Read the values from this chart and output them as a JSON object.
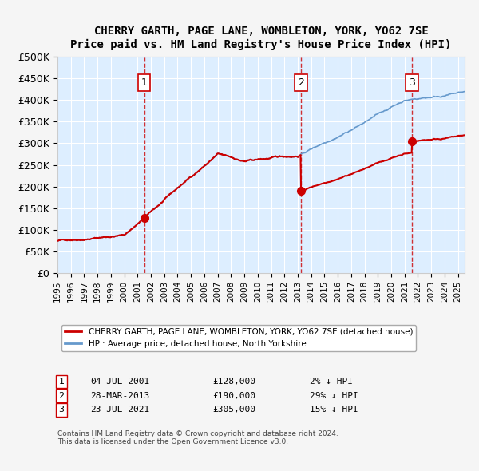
{
  "title": "CHERRY GARTH, PAGE LANE, WOMBLETON, YORK, YO62 7SE",
  "subtitle": "Price paid vs. HM Land Registry's House Price Index (HPI)",
  "sale_dates_num": [
    2001.507,
    2013.238,
    2021.557
  ],
  "sale_prices": [
    128000,
    190000,
    305000
  ],
  "sale_labels": [
    "1",
    "2",
    "3"
  ],
  "sale_date_strs": [
    "04-JUL-2001",
    "28-MAR-2013",
    "23-JUL-2021"
  ],
  "sale_price_strs": [
    "£128,000",
    "£190,000",
    "£305,000"
  ],
  "sale_hpi_strs": [
    "2% ↓ HPI",
    "29% ↓ HPI",
    "15% ↓ HPI"
  ],
  "hpi_line_color": "#6699cc",
  "price_line_color": "#cc0000",
  "sale_marker_color": "#cc0000",
  "dashed_line_color": "#cc0000",
  "background_color": "#ddeeff",
  "plot_background_color": "#ddeeff",
  "ylim": [
    0,
    500000
  ],
  "xlim_start": 1995.0,
  "xlim_end": 2025.5,
  "legend_label_property": "CHERRY GARTH, PAGE LANE, WOMBLETON, YORK, YO62 7SE (detached house)",
  "legend_label_hpi": "HPI: Average price, detached house, North Yorkshire",
  "footer_line1": "Contains HM Land Registry data © Crown copyright and database right 2024.",
  "footer_line2": "This data is licensed under the Open Government Licence v3.0."
}
